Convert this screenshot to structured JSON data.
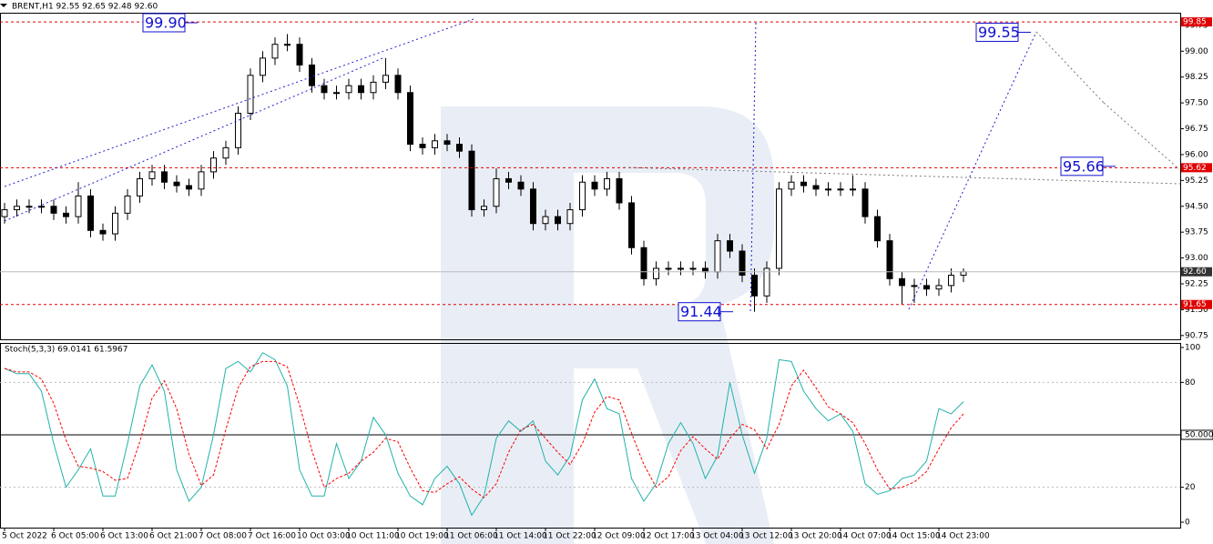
{
  "chart_data": [
    {
      "type": "candlestick",
      "title": "BRENT,H1  92.55 92.65 92.48 92.60",
      "categories": [
        "5 Oct 2022",
        null,
        null,
        null,
        "6 Oct 05:00",
        null,
        null,
        null,
        "6 Oct 13:00",
        null,
        null,
        null,
        "6 Oct 21:00",
        null,
        null,
        null,
        "7 Oct 08:00",
        null,
        null,
        null,
        "7 Oct 16:00",
        null,
        null,
        null,
        "10 Oct 03:00",
        null,
        null,
        null,
        "10 Oct 11:00",
        null,
        null,
        null,
        "10 Oct 19:00",
        null,
        null,
        null,
        "11 Oct 06:00",
        null,
        null,
        null,
        "11 Oct 14:00",
        null,
        null,
        null,
        "11 Oct 22:00",
        null,
        null,
        null,
        "12 Oct 09:00",
        null,
        null,
        null,
        "12 Oct 17:00",
        null,
        null,
        null,
        "13 Oct 04:00",
        null,
        null,
        null,
        "13 Oct 12:00",
        null,
        null,
        null,
        "13 Oct 20:00",
        null,
        null,
        null,
        "14 Oct 07:00",
        null,
        null,
        null,
        "14 Oct 15:00",
        null,
        null,
        null,
        "14 Oct 23:00",
        null,
        null
      ],
      "open": [
        94.2,
        94.4,
        94.5,
        94.5,
        94.5,
        94.3,
        94.2,
        94.8,
        93.8,
        93.7,
        94.3,
        94.8,
        95.3,
        95.5,
        95.2,
        95.1,
        95.0,
        95.5,
        95.9,
        96.2,
        97.2,
        98.3,
        98.8,
        99.2,
        99.2,
        98.6,
        98.0,
        97.8,
        97.8,
        98.0,
        97.8,
        98.1,
        98.3,
        97.8,
        96.3,
        96.2,
        96.4,
        96.3,
        96.1,
        94.4,
        94.5,
        95.3,
        95.2,
        95.0,
        94.0,
        94.2,
        94.0,
        94.4,
        95.2,
        95.0,
        95.3,
        94.6,
        93.3,
        92.4,
        92.7,
        92.7,
        92.7,
        92.7,
        92.6,
        93.5,
        93.2,
        92.5,
        91.9,
        92.7,
        95.0,
        95.2,
        95.1,
        95.0,
        95.0,
        95.0,
        95.0,
        94.2,
        93.5,
        92.4,
        92.2,
        92.2,
        92.1,
        92.2,
        92.5
      ],
      "high": [
        94.6,
        94.7,
        94.7,
        94.7,
        94.7,
        94.5,
        95.2,
        95.0,
        94.0,
        94.5,
        95.0,
        95.5,
        95.7,
        95.7,
        95.4,
        95.3,
        95.7,
        96.1,
        96.4,
        97.4,
        98.5,
        99.0,
        99.4,
        99.5,
        99.4,
        98.8,
        98.2,
        98.0,
        98.2,
        98.2,
        98.3,
        98.8,
        98.5,
        98.0,
        96.5,
        96.6,
        96.6,
        96.5,
        96.3,
        94.7,
        95.6,
        95.5,
        95.4,
        95.2,
        94.4,
        94.4,
        94.6,
        95.4,
        95.4,
        95.5,
        95.5,
        94.8,
        93.5,
        92.9,
        92.9,
        92.9,
        92.9,
        92.9,
        93.7,
        93.7,
        93.4,
        92.7,
        92.9,
        95.2,
        95.4,
        95.4,
        95.3,
        95.2,
        95.2,
        95.4,
        95.2,
        94.4,
        93.7,
        92.6,
        92.4,
        92.4,
        92.4,
        92.7,
        92.7
      ],
      "low": [
        94.0,
        94.2,
        94.3,
        94.3,
        94.1,
        94.0,
        94.0,
        93.6,
        93.5,
        93.5,
        94.1,
        94.6,
        95.1,
        95.0,
        94.9,
        94.8,
        94.8,
        95.3,
        95.7,
        96.0,
        97.0,
        98.1,
        98.6,
        99.0,
        98.4,
        97.8,
        97.6,
        97.6,
        97.6,
        97.6,
        97.6,
        97.9,
        97.6,
        96.1,
        96.0,
        96.0,
        96.1,
        95.9,
        94.2,
        94.2,
        94.3,
        95.0,
        94.8,
        93.8,
        93.8,
        93.8,
        93.8,
        94.2,
        94.8,
        94.8,
        94.4,
        93.1,
        92.2,
        92.2,
        92.5,
        92.5,
        92.5,
        92.4,
        92.4,
        93.0,
        92.3,
        91.44,
        91.7,
        92.5,
        94.8,
        94.9,
        94.8,
        94.8,
        94.8,
        94.8,
        94.0,
        93.3,
        92.2,
        91.65,
        91.7,
        91.9,
        91.9,
        92.0,
        92.3
      ],
      "close": [
        94.4,
        94.5,
        94.5,
        94.5,
        94.3,
        94.2,
        94.8,
        93.8,
        93.7,
        94.3,
        94.8,
        95.3,
        95.5,
        95.2,
        95.1,
        95.0,
        95.5,
        95.9,
        96.2,
        97.2,
        98.3,
        98.8,
        99.2,
        99.2,
        98.6,
        98.0,
        97.8,
        97.8,
        98.0,
        97.8,
        98.1,
        98.3,
        97.8,
        96.3,
        96.2,
        96.4,
        96.3,
        96.1,
        94.4,
        94.5,
        95.3,
        95.2,
        95.0,
        94.0,
        94.2,
        94.0,
        94.4,
        95.2,
        95.0,
        95.3,
        94.6,
        93.3,
        92.4,
        92.7,
        92.7,
        92.7,
        92.7,
        92.6,
        93.5,
        93.2,
        92.5,
        91.9,
        92.7,
        95.0,
        95.2,
        95.1,
        95.0,
        95.0,
        95.0,
        95.0,
        94.2,
        93.5,
        92.4,
        92.2,
        92.2,
        92.1,
        92.2,
        92.5,
        92.6
      ],
      "up_color": "#ffffff",
      "down_color": "#000000",
      "ylim": [
        90.64,
        100.09
      ],
      "yticks": [
        90.75,
        {
          "value": 91.5,
          "label": "91.50"
        },
        92.25,
        {
          "value": 93,
          "label": "93.00"
        },
        93.75,
        {
          "value": 94.5,
          "label": "94.50"
        },
        95.25,
        {
          "value": 96,
          "label": "96.00"
        },
        96.75,
        {
          "value": 97.5,
          "label": "97.50"
        },
        98.25,
        {
          "value": 99,
          "label": "99.00"
        },
        99.75
      ],
      "levels": [
        99.85,
        95.62,
        91.65
      ],
      "level_color": "#e00000",
      "current_price": {
        "value": 92.6,
        "label": "92.60"
      },
      "annotations": [
        {
          "value": 99.9,
          "label": "99.90"
        },
        {
          "value": 99.55,
          "label": "99.55"
        },
        {
          "value": 95.66,
          "label": "95.66"
        },
        {
          "value": 91.44,
          "label": "91.44"
        }
      ]
    },
    {
      "type": "line",
      "title": "Stoch(5,3,3) 69.0141 61.5967",
      "series": [
        {
          "color": "#20b2aa",
          "dashed": false,
          "values": [
            88,
            85,
            85,
            75,
            45,
            20,
            30,
            42,
            15,
            15,
            45,
            78,
            90,
            75,
            30,
            12,
            20,
            50,
            88,
            92,
            86,
            97,
            93,
            78,
            30,
            15,
            15,
            45,
            25,
            35,
            60,
            50,
            28,
            15,
            10,
            25,
            32,
            22,
            4,
            15,
            48,
            58,
            52,
            58,
            35,
            27,
            38,
            70,
            82,
            65,
            62,
            25,
            12,
            22,
            45,
            57,
            45,
            25,
            38,
            80,
            50,
            28,
            48,
            93,
            92,
            75,
            65,
            58,
            62,
            52,
            22,
            16,
            18,
            25,
            27,
            35,
            65,
            62,
            69
          ]
        },
        {
          "color": "#ff0000",
          "dashed": true,
          "values": [
            88,
            86,
            86,
            82,
            68,
            47,
            32,
            31,
            29,
            24,
            25,
            46,
            71,
            81,
            65,
            39,
            21,
            27,
            53,
            77,
            89,
            92,
            92,
            89,
            67,
            41,
            20,
            25,
            28,
            35,
            40,
            48,
            46,
            31,
            18,
            17,
            22,
            26,
            19,
            14,
            22,
            40,
            53,
            56,
            48,
            40,
            33,
            45,
            63,
            72,
            70,
            51,
            33,
            20,
            26,
            41,
            49,
            42,
            36,
            48,
            56,
            53,
            42,
            56,
            78,
            87,
            77,
            66,
            62,
            57,
            45,
            30,
            19,
            20,
            23,
            29,
            42,
            54,
            62
          ]
        }
      ],
      "ylim": [
        -3.11,
        102.07
      ],
      "yticks": [
        0,
        20,
        {
          "value": 50,
          "label": "50.0000"
        },
        80,
        100
      ]
    }
  ]
}
